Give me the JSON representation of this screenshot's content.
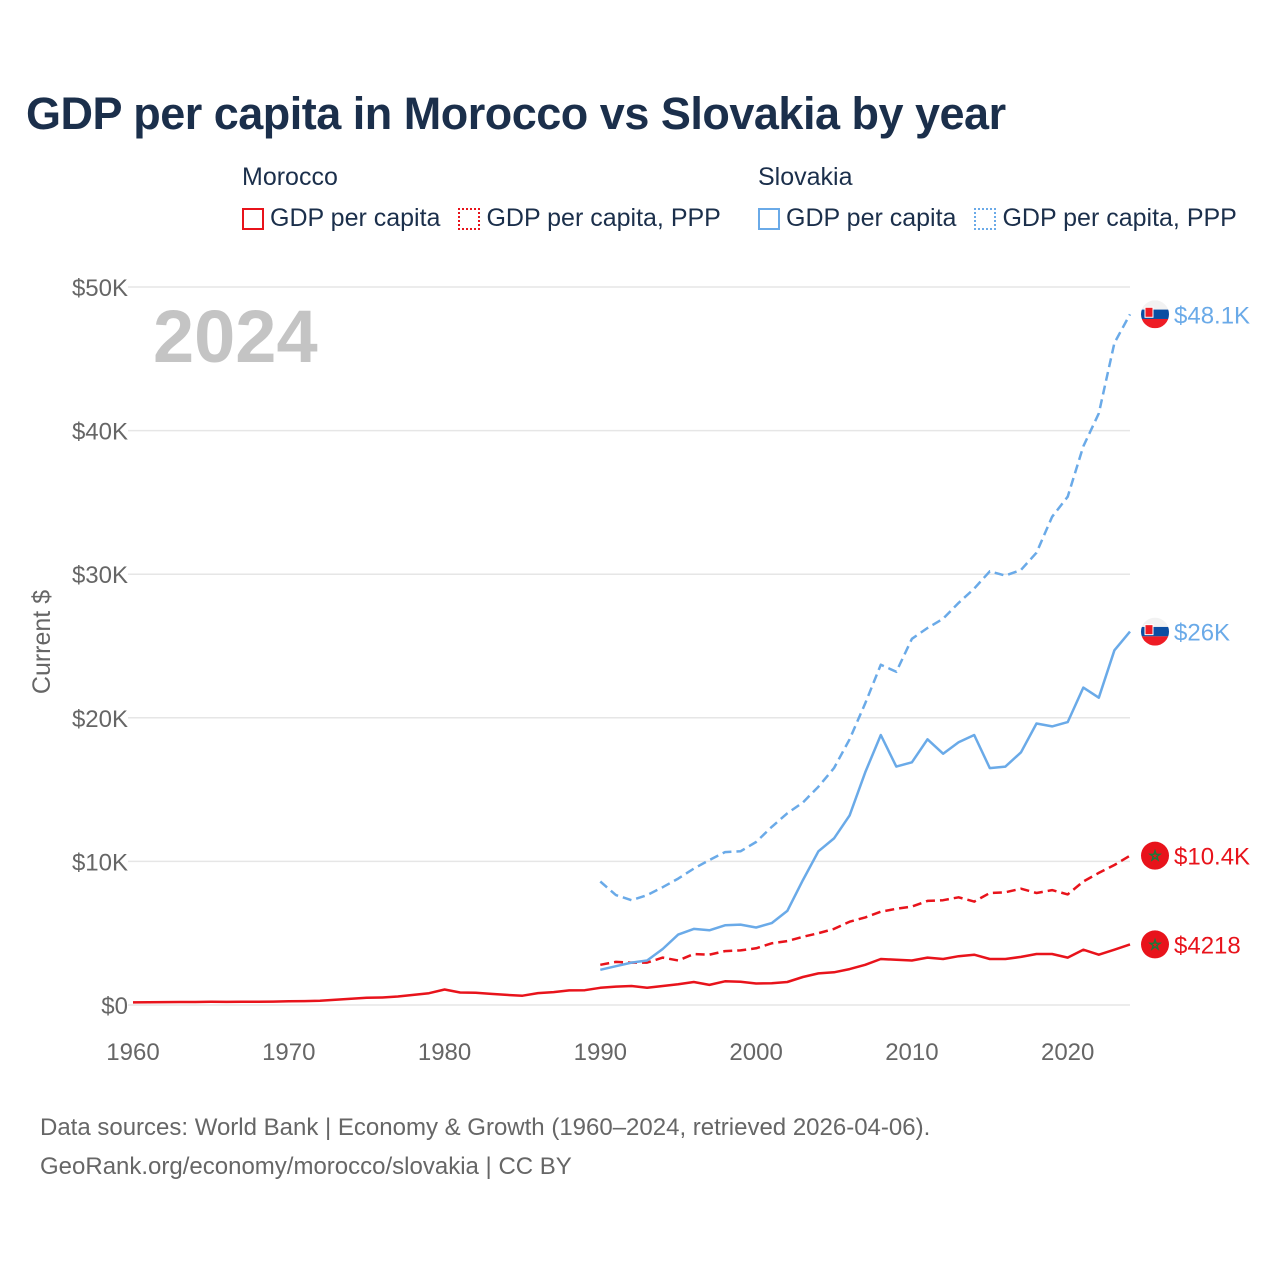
{
  "title": "GDP per capita in Morocco vs Slovakia by year",
  "legend": {
    "groups": [
      {
        "name": "Morocco",
        "items": [
          "GDP per capita",
          "GDP per capita, PPP"
        ],
        "color": "#e8131b"
      },
      {
        "name": "Slovakia",
        "items": [
          "GDP per capita",
          "GDP per capita, PPP"
        ],
        "color": "#6aaae8"
      }
    ]
  },
  "footer": {
    "line1": "Data sources: World Bank | Economy & Growth (1960–2024, retrieved 2026-04-06).",
    "line2": "GeoRank.org/economy/morocco/slovakia | CC BY"
  },
  "chart_data": {
    "type": "line",
    "title": "GDP per capita in Morocco vs Slovakia by year",
    "year_label": "2024",
    "ylabel": "Current $",
    "xlabel": "",
    "xlim": [
      1960,
      2024
    ],
    "ylim": [
      0,
      50000
    ],
    "x_ticks": [
      "1960",
      "1970",
      "1980",
      "1990",
      "2000",
      "2010",
      "2020"
    ],
    "y_ticks": [
      "$0",
      "$10K",
      "$20K",
      "$30K",
      "$40K",
      "$50K"
    ],
    "grid": true,
    "series": [
      {
        "name": "Morocco GDP per capita",
        "country": "Morocco",
        "style": "solid",
        "color": "#e8131b",
        "start_year": 1960,
        "end_label": "$4218",
        "values": [
          180,
          190,
          200,
          210,
          210,
          220,
          215,
          225,
          230,
          240,
          260,
          275,
          300,
          360,
          430,
          500,
          520,
          590,
          700,
          820,
          1080,
          870,
          850,
          770,
          700,
          650,
          830,
          900,
          1020,
          1030,
          1200,
          1280,
          1320,
          1200,
          1320,
          1450,
          1600,
          1400,
          1650,
          1620,
          1500,
          1520,
          1600,
          1950,
          2200,
          2280,
          2500,
          2800,
          3200,
          3150,
          3100,
          3300,
          3200,
          3400,
          3500,
          3200,
          3200,
          3350,
          3550,
          3550,
          3300,
          3850,
          3500,
          3850,
          4218
        ]
      },
      {
        "name": "Morocco GDP per capita, PPP",
        "country": "Morocco",
        "style": "dashed",
        "color": "#e8131b",
        "start_year": 1990,
        "end_label": "$10.4K",
        "values": [
          2800,
          3000,
          2950,
          2950,
          3300,
          3100,
          3550,
          3500,
          3750,
          3800,
          3950,
          4300,
          4450,
          4750,
          5000,
          5300,
          5800,
          6100,
          6500,
          6700,
          6850,
          7250,
          7300,
          7500,
          7200,
          7800,
          7850,
          8100,
          7800,
          8000,
          7700,
          8600,
          9200,
          9750,
          10400
        ]
      },
      {
        "name": "Slovakia GDP per capita",
        "country": "Slovakia",
        "style": "solid",
        "color": "#6aaae8",
        "start_year": 1990,
        "end_label": "$26K",
        "values": [
          2450,
          2700,
          2950,
          3100,
          3900,
          4900,
          5300,
          5200,
          5550,
          5600,
          5400,
          5700,
          6550,
          8700,
          10700,
          11600,
          13200,
          16200,
          18800,
          16600,
          16900,
          18500,
          17500,
          18300,
          18800,
          16500,
          16600,
          17600,
          19600,
          19400,
          19700,
          22100,
          21400,
          24700,
          26000
        ]
      },
      {
        "name": "Slovakia GDP per capita, PPP",
        "country": "Slovakia",
        "style": "dashed",
        "color": "#6aaae8",
        "start_year": 1990,
        "end_label": "$48.1K",
        "values": [
          8600,
          7650,
          7300,
          7650,
          8200,
          8800,
          9500,
          10100,
          10650,
          10700,
          11350,
          12400,
          13350,
          14100,
          15200,
          16500,
          18500,
          21000,
          23700,
          23200,
          25500,
          26250,
          26900,
          28000,
          29000,
          30200,
          29900,
          30300,
          31500,
          34000,
          35400,
          38900,
          41200,
          46100,
          48100
        ]
      }
    ]
  }
}
